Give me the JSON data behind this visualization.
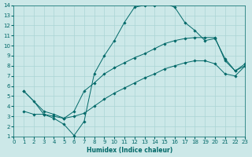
{
  "xlabel": "Humidex (Indice chaleur)",
  "xlim": [
    0,
    23
  ],
  "ylim": [
    1,
    14
  ],
  "xticks": [
    0,
    1,
    2,
    3,
    4,
    5,
    6,
    7,
    8,
    9,
    10,
    11,
    12,
    13,
    14,
    15,
    16,
    17,
    18,
    19,
    20,
    21,
    22,
    23
  ],
  "yticks": [
    1,
    2,
    3,
    4,
    5,
    6,
    7,
    8,
    9,
    10,
    11,
    12,
    13,
    14
  ],
  "bg_color": "#cce8e8",
  "grid_color": "#aad4d4",
  "line_color": "#006868",
  "lines": [
    {
      "x": [
        1,
        2,
        3,
        4,
        5,
        6,
        7,
        8,
        9,
        10,
        11,
        12,
        13,
        14,
        15,
        16,
        17,
        18,
        19,
        20,
        21,
        22,
        23
      ],
      "y": [
        5.5,
        4.5,
        3.2,
        2.8,
        2.2,
        1.1,
        2.5,
        7.2,
        9.0,
        10.5,
        12.3,
        13.8,
        14.0,
        14.0,
        14.2,
        13.8,
        12.3,
        11.5,
        10.5,
        10.7,
        8.7,
        7.5,
        8.0
      ]
    },
    {
      "x": [
        1,
        3,
        4,
        5,
        6,
        7,
        8,
        9,
        10,
        11,
        12,
        13,
        14,
        15,
        16,
        17,
        18,
        19,
        20,
        21,
        22,
        23
      ],
      "y": [
        5.5,
        3.5,
        3.2,
        2.8,
        3.5,
        5.5,
        6.3,
        7.2,
        7.8,
        8.3,
        8.8,
        9.2,
        9.7,
        10.2,
        10.5,
        10.7,
        10.8,
        10.8,
        10.8,
        8.5,
        7.5,
        8.2
      ]
    },
    {
      "x": [
        1,
        2,
        3,
        4,
        5,
        6,
        7,
        8,
        9,
        10,
        11,
        12,
        13,
        14,
        15,
        16,
        17,
        18,
        19,
        20,
        21,
        22,
        23
      ],
      "y": [
        3.5,
        3.2,
        3.2,
        3.0,
        2.8,
        3.0,
        3.3,
        4.0,
        4.7,
        5.3,
        5.8,
        6.3,
        6.8,
        7.2,
        7.7,
        8.0,
        8.3,
        8.5,
        8.5,
        8.2,
        7.2,
        7.0,
        8.0
      ]
    }
  ]
}
